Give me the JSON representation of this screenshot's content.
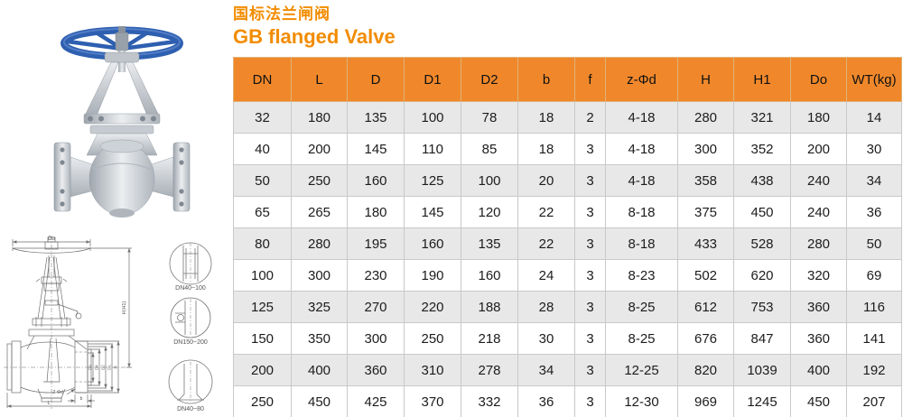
{
  "title": {
    "zh": "国标法兰闸阀",
    "en": "GB flanged Valve"
  },
  "colors": {
    "accent": "#F28C00",
    "header_bg": "#F0882B",
    "row_alt": "#E9E8E8",
    "border": "#C9C9C9",
    "handwheel_blue": "#2E5FB0",
    "line": "#6E6E6E"
  },
  "table": {
    "columns": [
      "DN",
      "L",
      "D",
      "D1",
      "D2",
      "b",
      "f",
      "z-Φd",
      "H",
      "H1",
      "Do",
      "WT(kg)"
    ],
    "rows": [
      [
        "32",
        "180",
        "135",
        "100",
        "78",
        "18",
        "2",
        "4-18",
        "280",
        "321",
        "180",
        "14"
      ],
      [
        "40",
        "200",
        "145",
        "110",
        "85",
        "18",
        "3",
        "4-18",
        "300",
        "352",
        "200",
        "30"
      ],
      [
        "50",
        "250",
        "160",
        "125",
        "100",
        "20",
        "3",
        "4-18",
        "358",
        "438",
        "240",
        "34"
      ],
      [
        "65",
        "265",
        "180",
        "145",
        "120",
        "22",
        "3",
        "8-18",
        "375",
        "450",
        "240",
        "36"
      ],
      [
        "80",
        "280",
        "195",
        "160",
        "135",
        "22",
        "3",
        "8-18",
        "433",
        "528",
        "280",
        "50"
      ],
      [
        "100",
        "300",
        "230",
        "190",
        "160",
        "24",
        "3",
        "8-23",
        "502",
        "620",
        "320",
        "69"
      ],
      [
        "125",
        "325",
        "270",
        "220",
        "188",
        "28",
        "3",
        "8-25",
        "612",
        "753",
        "360",
        "116"
      ],
      [
        "150",
        "350",
        "300",
        "250",
        "218",
        "30",
        "3",
        "8-25",
        "676",
        "847",
        "360",
        "141"
      ],
      [
        "200",
        "400",
        "360",
        "310",
        "278",
        "34",
        "3",
        "12-25",
        "820",
        "1039",
        "400",
        "192"
      ],
      [
        "250",
        "450",
        "425",
        "370",
        "332",
        "36",
        "3",
        "12-30",
        "969",
        "1245",
        "450",
        "207"
      ]
    ]
  },
  "drawing": {
    "labels": {
      "top_dim": "Do",
      "height_dim": "H(H1)",
      "dia_dim_1": "DN",
      "dia_dim_2": "D4",
      "dia_dim_3": "D2",
      "dia_dim_4": "D1",
      "dia_dim_5": "D",
      "bolt_dim": "Z-Φd",
      "length_dim": "L",
      "thickness_dim": "b"
    },
    "details": [
      {
        "label": "DN40~100"
      },
      {
        "label": "DN150~200"
      },
      {
        "label": "DN40~80"
      }
    ]
  }
}
